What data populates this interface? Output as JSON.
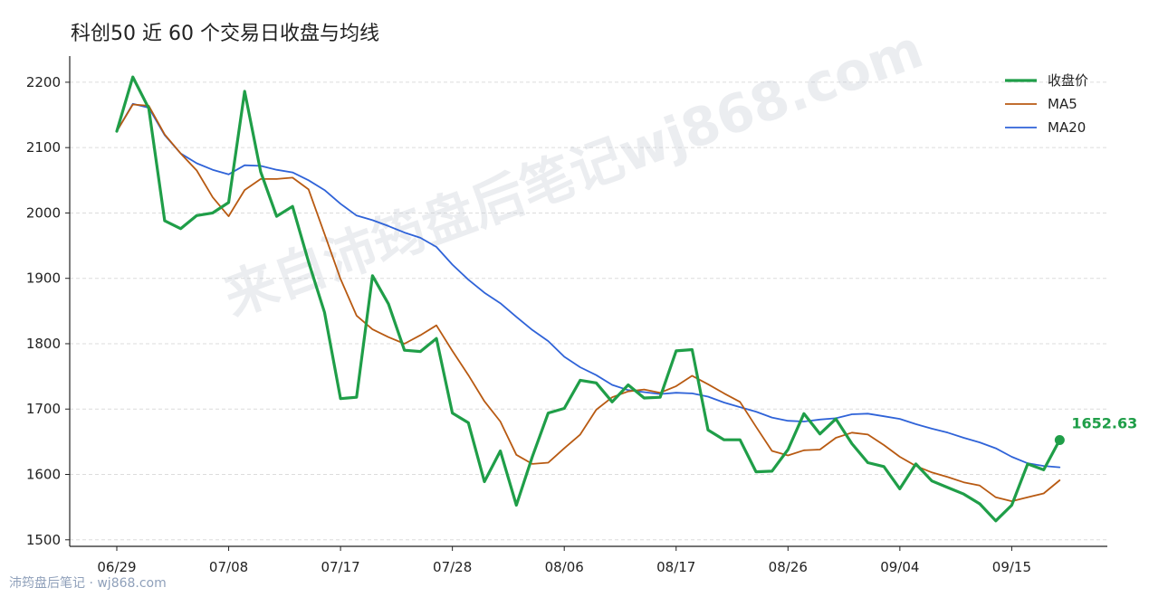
{
  "chart_data": {
    "type": "line",
    "title": "科创50 近 60 个交易日收盘与均线",
    "xlabel": "",
    "ylabel": "",
    "ylim": [
      1490,
      2240
    ],
    "yticks": [
      1500,
      1600,
      1700,
      1800,
      1900,
      2000,
      2100,
      2200
    ],
    "xtick_labels": [
      "06/29",
      "07/08",
      "07/17",
      "07/28",
      "08/06",
      "08/17",
      "08/26",
      "09/04",
      "09/15"
    ],
    "xtick_index": [
      0,
      7,
      14,
      21,
      28,
      35,
      42,
      49,
      56
    ],
    "n_points": 60,
    "grid": "horizontal dashed",
    "legend_position": "top-right",
    "colors": {
      "close": "#1f9e48",
      "ma5": "#b85a12",
      "ma20": "#2f63d8"
    },
    "series": [
      {
        "name": "收盘价",
        "key": "close",
        "values": [
          2125,
          2208,
          2160,
          1988,
          1976,
          1996,
          2000,
          2016,
          2186,
          2063,
          1995,
          2010,
          1925,
          1848,
          1716,
          1718,
          1904,
          1861,
          1790,
          1788,
          1808,
          1694,
          1679,
          1589,
          1636,
          1553,
          1627,
          1694,
          1701,
          1744,
          1740,
          1711,
          1737,
          1717,
          1718,
          1789,
          1791,
          1668,
          1653,
          1653,
          1604,
          1605,
          1638,
          1693,
          1662,
          1685,
          1647,
          1618,
          1612,
          1578,
          1616,
          1590,
          1580,
          1570,
          1555,
          1529,
          1553,
          1616,
          1607,
          1652.63
        ]
      },
      {
        "name": "MA5",
        "key": "ma5",
        "values": [
          2125,
          2166,
          2164,
          2120,
          2091,
          2065,
          2024,
          1995,
          2035,
          2052,
          2052,
          2054,
          2036,
          1968,
          1899,
          1843,
          1822,
          1810,
          1800,
          1813,
          1828,
          1789,
          1752,
          1712,
          1681,
          1630,
          1616,
          1618,
          1640,
          1661,
          1699,
          1718,
          1727,
          1730,
          1725,
          1735,
          1751,
          1738,
          1724,
          1711,
          1673,
          1636,
          1629,
          1637,
          1638,
          1656,
          1664,
          1661,
          1645,
          1627,
          1613,
          1603,
          1596,
          1588,
          1583,
          1565,
          1559,
          1565,
          1571,
          1591
        ]
      },
      {
        "name": "MA20",
        "key": "ma20",
        "values": [
          2125,
          2167,
          2161,
          2119,
          2091,
          2076,
          2066,
          2059,
          2073,
          2072,
          2066,
          2062,
          2050,
          2035,
          2014,
          1996,
          1989,
          1980,
          1970,
          1962,
          1948,
          1921,
          1898,
          1878,
          1862,
          1841,
          1821,
          1804,
          1780,
          1764,
          1752,
          1737,
          1729,
          1726,
          1723,
          1725,
          1724,
          1719,
          1710,
          1703,
          1696,
          1687,
          1682,
          1681,
          1684,
          1686,
          1692,
          1693,
          1689,
          1685,
          1677,
          1670,
          1664,
          1656,
          1649,
          1640,
          1627,
          1617,
          1613,
          1611
        ]
      }
    ],
    "last_value_label": "1652.63"
  },
  "watermark": "来自沛筠盘后笔记wj868.com",
  "footer": "沛筠盘后笔记 · wj868.com"
}
